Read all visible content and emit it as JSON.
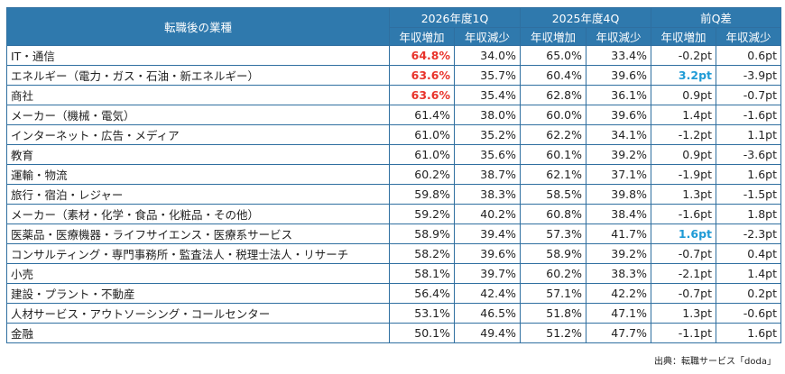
{
  "header": {
    "industry": "転職後の業種",
    "groups": [
      "2026年度1Q",
      "2025年度4Q",
      "前Q差"
    ],
    "sub": [
      "年収増加",
      "年収減少",
      "年収増加",
      "年収減少",
      "年収増加",
      "年収減少"
    ]
  },
  "rows": [
    {
      "label": "IT・通信",
      "v": [
        "64.8%",
        "34.0%",
        "65.0%",
        "33.4%",
        "-0.2pt",
        "0.6pt"
      ]
    },
    {
      "label": "エネルギー（電力・ガス・石油・新エネルギー）",
      "v": [
        "63.6%",
        "35.7%",
        "60.4%",
        "39.6%",
        "3.2pt",
        "-3.9pt"
      ]
    },
    {
      "label": "商社",
      "v": [
        "63.6%",
        "35.4%",
        "62.8%",
        "36.1%",
        "0.9pt",
        "-0.7pt"
      ]
    },
    {
      "label": "メーカー（機械・電気）",
      "v": [
        "61.4%",
        "38.0%",
        "60.0%",
        "39.6%",
        "1.4pt",
        "-1.6pt"
      ]
    },
    {
      "label": "インターネット・広告・メディア",
      "v": [
        "61.0%",
        "35.2%",
        "62.2%",
        "34.1%",
        "-1.2pt",
        "1.1pt"
      ]
    },
    {
      "label": "教育",
      "v": [
        "61.0%",
        "35.6%",
        "60.1%",
        "39.2%",
        "0.9pt",
        "-3.6pt"
      ]
    },
    {
      "label": "運輸・物流",
      "v": [
        "60.2%",
        "38.7%",
        "62.1%",
        "37.1%",
        "-1.9pt",
        "1.6pt"
      ]
    },
    {
      "label": "旅行・宿泊・レジャー",
      "v": [
        "59.8%",
        "38.3%",
        "58.5%",
        "39.8%",
        "1.3pt",
        "-1.5pt"
      ]
    },
    {
      "label": "メーカー（素材・化学・食品・化粧品・その他）",
      "v": [
        "59.2%",
        "40.2%",
        "60.8%",
        "38.4%",
        "-1.6pt",
        "1.8pt"
      ]
    },
    {
      "label": "医薬品・医療機器・ライフサイエンス・医療系サービス",
      "v": [
        "58.9%",
        "39.4%",
        "57.3%",
        "41.7%",
        "1.6pt",
        "-2.3pt"
      ]
    },
    {
      "label": "コンサルティング・専門事務所・監査法人・税理士法人・リサーチ",
      "v": [
        "58.2%",
        "39.6%",
        "58.9%",
        "39.2%",
        "-0.7pt",
        "0.4pt"
      ]
    },
    {
      "label": "小売",
      "v": [
        "58.1%",
        "39.7%",
        "60.2%",
        "38.3%",
        "-2.1pt",
        "1.4pt"
      ]
    },
    {
      "label": "建設・プラント・不動産",
      "v": [
        "56.4%",
        "42.4%",
        "57.1%",
        "42.2%",
        "-0.7pt",
        "0.2pt"
      ]
    },
    {
      "label": "人材サービス・アウトソーシング・コールセンター",
      "v": [
        "53.1%",
        "46.5%",
        "51.8%",
        "47.1%",
        "1.3pt",
        "-0.6pt"
      ]
    },
    {
      "label": "金融",
      "v": [
        "50.1%",
        "49.4%",
        "51.2%",
        "47.7%",
        "-1.1pt",
        "1.6pt"
      ]
    }
  ],
  "highlights": [
    [
      0,
      0,
      "red"
    ],
    [
      1,
      0,
      "red"
    ],
    [
      2,
      0,
      "red"
    ],
    [
      1,
      4,
      "blue"
    ],
    [
      9,
      4,
      "blue"
    ]
  ],
  "colors": {
    "header_bg": "#2f79ad",
    "border": "#2f6fa0",
    "highlight_red": "#e8332b",
    "highlight_blue": "#1f9bd6"
  },
  "source": "出典：転職サービス「doda」"
}
